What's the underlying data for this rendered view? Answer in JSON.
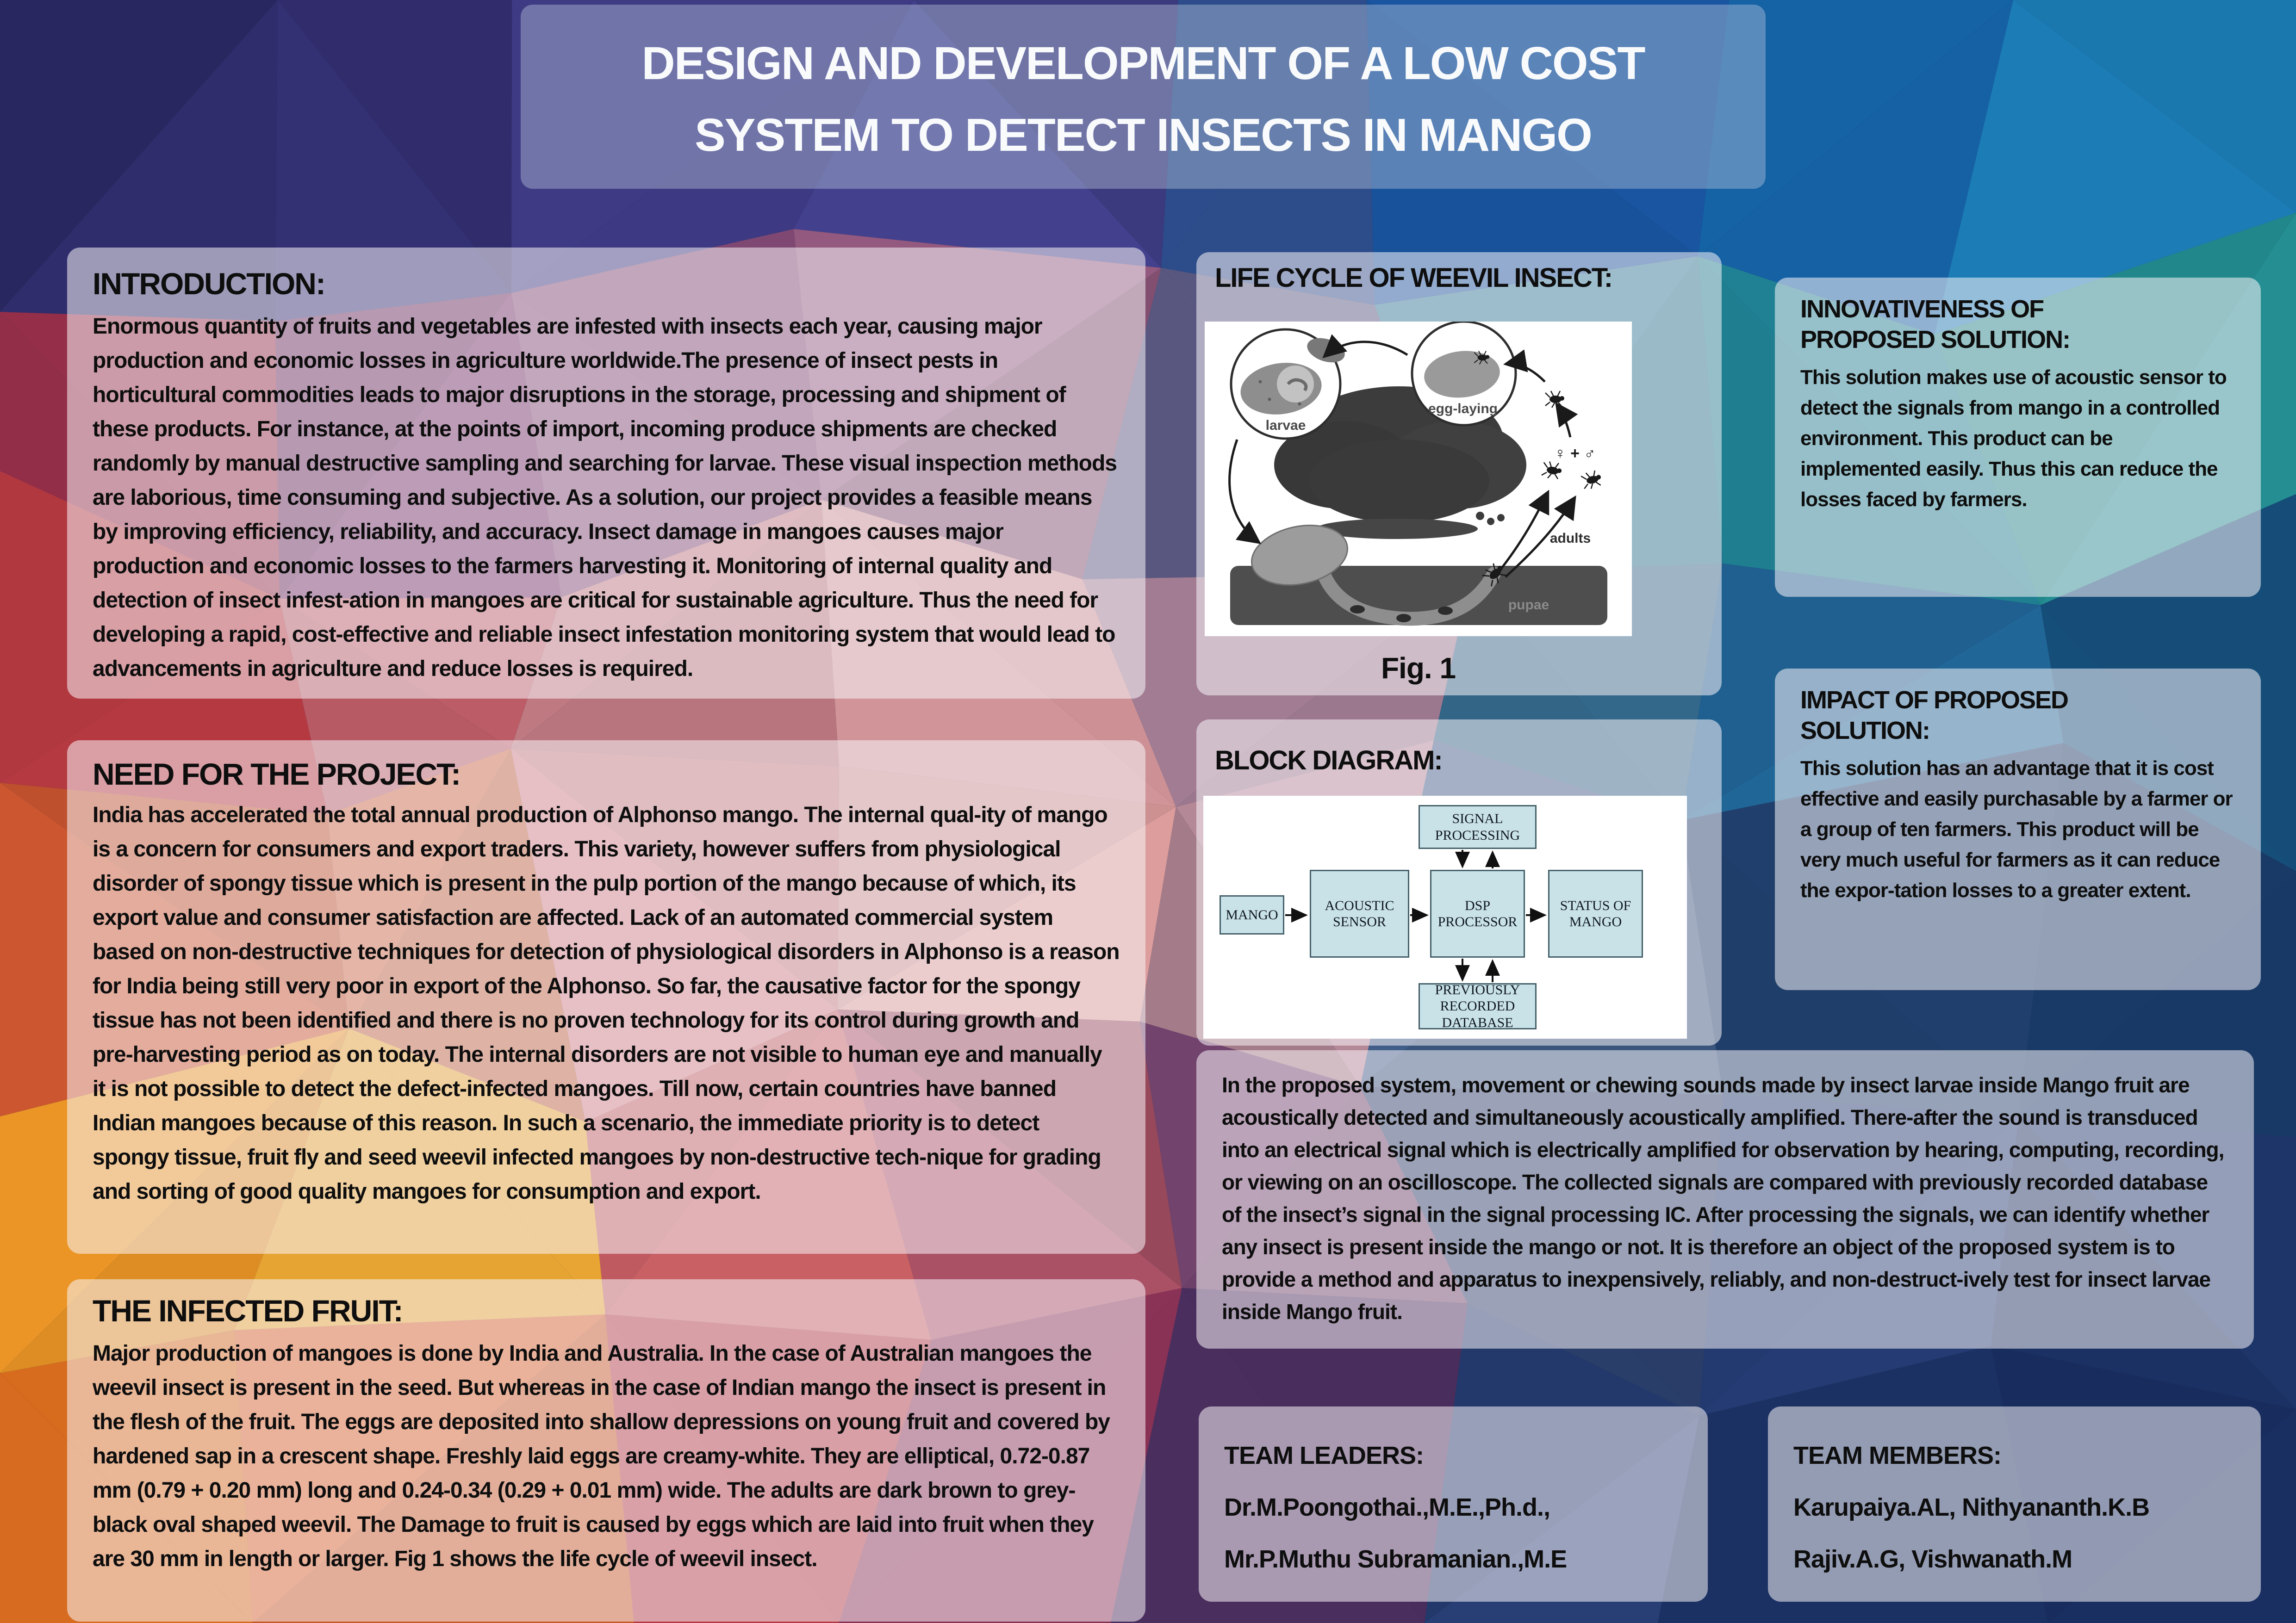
{
  "title": {
    "line1": "DESIGN AND DEVELOPMENT OF A LOW COST",
    "line2": "SYSTEM TO DETECT INSECTS IN MANGO"
  },
  "introduction": {
    "heading": "INTRODUCTION:",
    "body": "Enormous quantity of fruits and vegetables are infested with insects each year, causing major production and economic losses in agriculture worldwide.The presence of insect pests in horticultural commodities leads to major disruptions in the storage, processing and shipment of these products. For instance, at the points of import, incoming produce shipments are checked randomly by manual destructive sampling and searching for larvae. These visual inspection methods are laborious, time consuming and subjective. As a solution, our project provides a feasible means by improving efficiency, reliability, and accuracy. Insect damage in mangoes causes major production and economic losses to the farmers harvesting it. Monitoring of internal quality and detection of insect infest-ation in mangoes are critical for sustainable agriculture. Thus the need for developing a rapid, cost-effective and reliable insect infestation monitoring system that would lead to advancements in agriculture and reduce losses is required."
  },
  "need_for_project": {
    "heading": "NEED FOR THE PROJECT:",
    "body": "India has accelerated the total annual production of Alphonso mango. The internal qual-ity of mango is a concern for consumers and export traders. This variety, however suffers from physiological disorder of spongy tissue which is present in the pulp portion of the mango because of which, its export value and consumer satisfaction are affected. Lack of an automated commercial system based on non-destructive techniques for detection of physiological disorders in Alphonso is a reason for India being still very poor in export of the Alphonso. So far, the causative factor for the spongy tissue has not been identified and there is no proven technology for its control during growth and pre-harvesting period as on today. The internal disorders are not visible to human eye and manually it is not possible to detect the defect-infected mangoes. Till now, certain countries have banned Indian mangoes because of this reason. In such a scenario, the immediate priority is to detect spongy tissue, fruit fly and seed weevil infected mangoes by non-destructive tech-nique for grading and sorting of good quality mangoes for consumption and export."
  },
  "infected_fruit": {
    "heading": "THE INFECTED FRUIT:",
    "body": "Major production of mangoes is done by India and Australia. In the case of Australian mangoes the weevil insect is present in the seed. But whereas in the case of Indian mango the insect is present in the flesh of the fruit. The eggs are deposited into shallow depressions on young fruit and covered by hardened sap in a crescent shape. Freshly laid eggs are creamy-white. They are elliptical, 0.72-0.87 mm (0.79 + 0.20 mm) long and 0.24-0.34 (0.29 + 0.01 mm) wide. The adults are dark brown to grey-black oval shaped weevil. The Damage to fruit is caused by eggs which are laid into fruit when they are 30 mm in length or larger. Fig 1 shows the life cycle of weevil insect."
  },
  "life_cycle": {
    "heading": "LIFE CYCLE OF WEEVIL INSECT:",
    "caption": "Fig. 1",
    "labels": {
      "larvae": "larvae",
      "egg_laying": "egg-laying",
      "adults": "adults",
      "pupae": "pupae",
      "gender": "♀ + ♂"
    }
  },
  "block_diagram": {
    "heading": "BLOCK DIAGRAM:",
    "boxes": {
      "mango": "MANGO",
      "acoustic": "ACOUSTIC SENSOR",
      "dsp": "DSP PROCESSOR",
      "status": "STATUS OF MANGO",
      "signal": "SIGNAL PROCESSING",
      "database": "PREVIOUSLY RECORDED DATABASE"
    }
  },
  "proposed_system": {
    "body": "In the proposed system, movement or chewing sounds made by insect larvae inside Mango fruit are acoustically detected and simultaneously acoustically amplified. There-after the sound is transduced into an electrical signal which is electrically amplified for observation by hearing, computing, recording, or viewing on an oscilloscope. The collected signals are compared with previously recorded database of the insect’s signal in the signal processing IC. After processing the signals, we can identify whether any insect is present inside the mango or not. It is therefore an object of the proposed system is to provide a method and apparatus to inexpensively, reliably, and non-destruct-ively test for insect larvae inside Mango fruit."
  },
  "innovativeness": {
    "heading": [
      "INNOVATIVENESS OF",
      "PROPOSED SOLUTION:"
    ],
    "body": "This solution makes use of acoustic sensor to detect the signals from mango in a controlled environment. This product can be implemented easily. Thus this can reduce the losses faced by farmers."
  },
  "impact": {
    "heading": [
      "IMPACT OF PROPOSED",
      "SOLUTION:"
    ],
    "body": "This solution has an advantage that it is cost effective and easily purchasable by a farmer or a group of ten farmers. This product will be very much useful for farmers as it can reduce the expor-tation losses to a greater extent."
  },
  "team_leaders": {
    "heading": "TEAM LEADERS:",
    "line1": "Dr.M.Poongothai.,M.E.,Ph.d.,",
    "line2": "Mr.P.Muthu Subramanian.,M.E"
  },
  "team_members": {
    "heading": "TEAM MEMBERS:",
    "line1": "Karupaiya.AL, Nithyananth.K.B",
    "line2": "Rajiv.A.G, Vishwanath.M"
  },
  "colors": {
    "title_panel_tint": "rgba(183,197,219,0.42)",
    "content_panel_tint": "rgba(248,244,248,0.55)",
    "title_text": "#f8fafc",
    "body_text": "#0e0e0e",
    "diagram_box_fill": "#c9e2e8"
  },
  "background": {
    "palette": [
      [
        "#2c2a66",
        "#343074",
        "#3c3880",
        "#3f3d85",
        "#2c4a86",
        "#174f96",
        "#1560a2",
        "#1a73a8"
      ],
      [
        "#97304a",
        "#6e2f62",
        "#7c4670",
        "#8c5578",
        "#5c5a84",
        "#2c7490",
        "#1f8092",
        "#238a8e"
      ],
      [
        "#b83a42",
        "#b85a64",
        "#c07a82",
        "#c98e92",
        "#97748a",
        "#34688a",
        "#1e5e8c",
        "#154a74"
      ],
      [
        "#cc5630",
        "#c66844",
        "#c47a7e",
        "#cc9190",
        "#a87e8c",
        "#3c5880",
        "#203e6a",
        "#173660"
      ],
      [
        "#dc8c24",
        "#d89a30",
        "#bc5a5e",
        "#a04c60",
        "#6c4068",
        "#2c406e",
        "#22386c",
        "#1c3264"
      ],
      [
        "#d2691e",
        "#c85a28",
        "#aa3640",
        "#802f50",
        "#4e3062",
        "#263c70",
        "#1e346a",
        "#182c5c"
      ]
    ]
  }
}
